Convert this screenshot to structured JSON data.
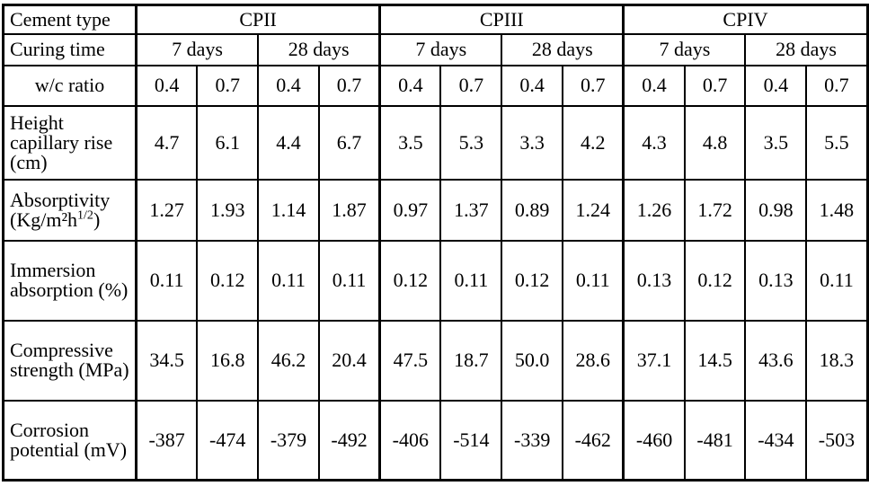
{
  "table": {
    "header": {
      "cement_label": "Cement type",
      "cement_types": [
        "CPII",
        "CPIII",
        "CPIV"
      ],
      "curing_label": "Curing time",
      "curing_times": [
        "7 days",
        "28 days",
        "7 days",
        "28 days",
        "7 days",
        "28 days"
      ],
      "wc_label": "w/c ratio",
      "wc_ratios": [
        "0.4",
        "0.7",
        "0.4",
        "0.7",
        "0.4",
        "0.7",
        "0.4",
        "0.7",
        "0.4",
        "0.7",
        "0.4",
        "0.7"
      ]
    },
    "rows": [
      {
        "label": "Height capillary rise (cm)",
        "values": [
          "4.7",
          "6.1",
          "4.4",
          "6.7",
          "3.5",
          "5.3",
          "3.3",
          "4.2",
          "4.3",
          "4.8",
          "3.5",
          "5.5"
        ]
      },
      {
        "label_parts": [
          "Absorptivity (Kg/m²h",
          "1/2",
          ")"
        ],
        "values": [
          "1.27",
          "1.93",
          "1.14",
          "1.87",
          "0.97",
          "1.37",
          "0.89",
          "1.24",
          "1.26",
          "1.72",
          "0.98",
          "1.48"
        ]
      },
      {
        "label": "Immersion absorption (%)",
        "values": [
          "0.11",
          "0.12",
          "0.11",
          "0.11",
          "0.12",
          "0.11",
          "0.12",
          "0.11",
          "0.13",
          "0.12",
          "0.13",
          "0.11"
        ]
      },
      {
        "label": "Compressive strength (MPa)",
        "values": [
          "34.5",
          "16.8",
          "46.2",
          "20.4",
          "47.5",
          "18.7",
          "50.0",
          "28.6",
          "37.1",
          "14.5",
          "43.6",
          "18.3"
        ]
      },
      {
        "label": "Corrosion potential (mV)",
        "values": [
          "-387",
          "-474",
          "-379",
          "-492",
          "-406",
          "-514",
          "-339",
          "-462",
          "-460",
          "-481",
          "-434",
          "-503"
        ]
      }
    ]
  }
}
